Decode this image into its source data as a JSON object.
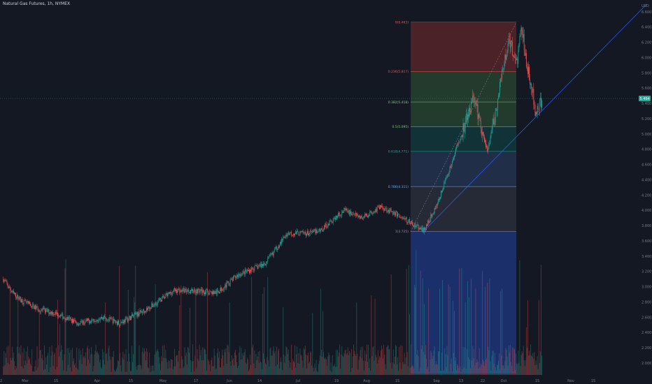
{
  "header": {
    "title": "Natural Gas Futures, 1h, NYMEX"
  },
  "axis": {
    "currency": "USD"
  },
  "current_price": {
    "label": "5.464",
    "color": "#26a69a"
  },
  "colors": {
    "background": "#141823",
    "up": "#26a69a",
    "down": "#ef5350",
    "volume_up": "#26a69a",
    "volume_down": "#ef5350",
    "trendline": "#2962ff",
    "axis_text": "#787b86"
  },
  "chart_data": {
    "type": "candlestick",
    "title": "Natural Gas Futures, 1h, NYMEX",
    "ylabel": "USD",
    "ylim": [
      1.93,
      6.96
    ],
    "y_ticks": [
      "2.000",
      "2.200",
      "2.400",
      "2.600",
      "2.800",
      "3.000",
      "3.200",
      "3.400",
      "3.600",
      "3.800",
      "4.000",
      "4.200",
      "4.400",
      "4.600",
      "4.800",
      "5.000",
      "5.200",
      "5.400",
      "5.600",
      "5.800",
      "6.000",
      "6.200",
      "6.400",
      "6.600",
      "6.800"
    ],
    "x_ticks": [
      "Mar",
      "15",
      "Apr",
      "15",
      "May",
      "17",
      "Jun",
      "14",
      "Jul",
      "19",
      "Aug",
      "15",
      "Sep",
      "13",
      "22",
      "Oct",
      "15",
      "Nov",
      "15"
    ],
    "x_start_label": "2",
    "price_path": [
      {
        "date": "Feb 20",
        "price": 3.1
      },
      {
        "date": "Feb 24",
        "price": 2.92
      },
      {
        "date": "Mar 1",
        "price": 2.8
      },
      {
        "date": "Mar 8",
        "price": 2.7
      },
      {
        "date": "Mar 15",
        "price": 2.65
      },
      {
        "date": "Mar 25",
        "price": 2.52
      },
      {
        "date": "Apr 5",
        "price": 2.6
      },
      {
        "date": "Apr 12",
        "price": 2.52
      },
      {
        "date": "Apr 25",
        "price": 2.72
      },
      {
        "date": "May 6",
        "price": 2.95
      },
      {
        "date": "May 15",
        "price": 2.95
      },
      {
        "date": "May 25",
        "price": 2.92
      },
      {
        "date": "Jun 3",
        "price": 3.15
      },
      {
        "date": "Jun 15",
        "price": 3.3
      },
      {
        "date": "Jun 25",
        "price": 3.7
      },
      {
        "date": "Jul 5",
        "price": 3.7
      },
      {
        "date": "Jul 10",
        "price": 3.75
      },
      {
        "date": "Jul 20",
        "price": 4.0
      },
      {
        "date": "Jul 28",
        "price": 3.9
      },
      {
        "date": "Aug 5",
        "price": 4.05
      },
      {
        "date": "Aug 12",
        "price": 3.95
      },
      {
        "date": "Aug 20",
        "price": 3.8
      },
      {
        "date": "Aug 24",
        "price": 3.73
      },
      {
        "date": "Aug 30",
        "price": 4.1
      },
      {
        "date": "Sep 5",
        "price": 4.6
      },
      {
        "date": "Sep 10",
        "price": 5.05
      },
      {
        "date": "Sep 15",
        "price": 5.5
      },
      {
        "date": "Sep 18",
        "price": 5.1
      },
      {
        "date": "Sep 21",
        "price": 4.78
      },
      {
        "date": "Sep 24",
        "price": 5.2
      },
      {
        "date": "Sep 27",
        "price": 5.7
      },
      {
        "date": "Sep 30",
        "price": 6.2
      },
      {
        "date": "Oct 2",
        "price": 6.1
      },
      {
        "date": "Oct 4",
        "price": 5.95
      },
      {
        "date": "Oct 6",
        "price": 6.45
      },
      {
        "date": "Oct 8",
        "price": 5.9
      },
      {
        "date": "Oct 10",
        "price": 5.7
      },
      {
        "date": "Oct 12",
        "price": 5.3
      },
      {
        "date": "Oct 15",
        "price": 5.46
      }
    ],
    "fibonacci": {
      "anchor_low": 3.72,
      "anchor_high": 6.46,
      "levels": [
        {
          "label": "0(6.463)",
          "value": 6.463,
          "color": "#ef5350",
          "fill": "#7a2b30"
        },
        {
          "label": "0.236(5.817)",
          "value": 5.817,
          "color": "#ef5350",
          "fill": "#2e5a35"
        },
        {
          "label": "0.382(5.418)",
          "value": 5.418,
          "color": "#81c784",
          "fill": "#2e5a35"
        },
        {
          "label": "0.5(5.095)",
          "value": 5.095,
          "color": "#81c784",
          "fill": "#0f4a4a"
        },
        {
          "label": "0.618(4.771)",
          "value": 4.771,
          "color": "#26a69a",
          "fill": "#2a4466"
        },
        {
          "label": "0.786(4.311)",
          "value": 4.311,
          "color": "#64b5f6",
          "fill": "#343a48"
        },
        {
          "label": "1(3.725)",
          "value": 3.725,
          "color": "#9598a1",
          "fill": "#1e3a8a"
        }
      ]
    },
    "trendline": {
      "from": {
        "date": "Aug 24",
        "price": 3.73
      },
      "to": {
        "date": "Nov 30",
        "price": 6.7
      }
    }
  }
}
